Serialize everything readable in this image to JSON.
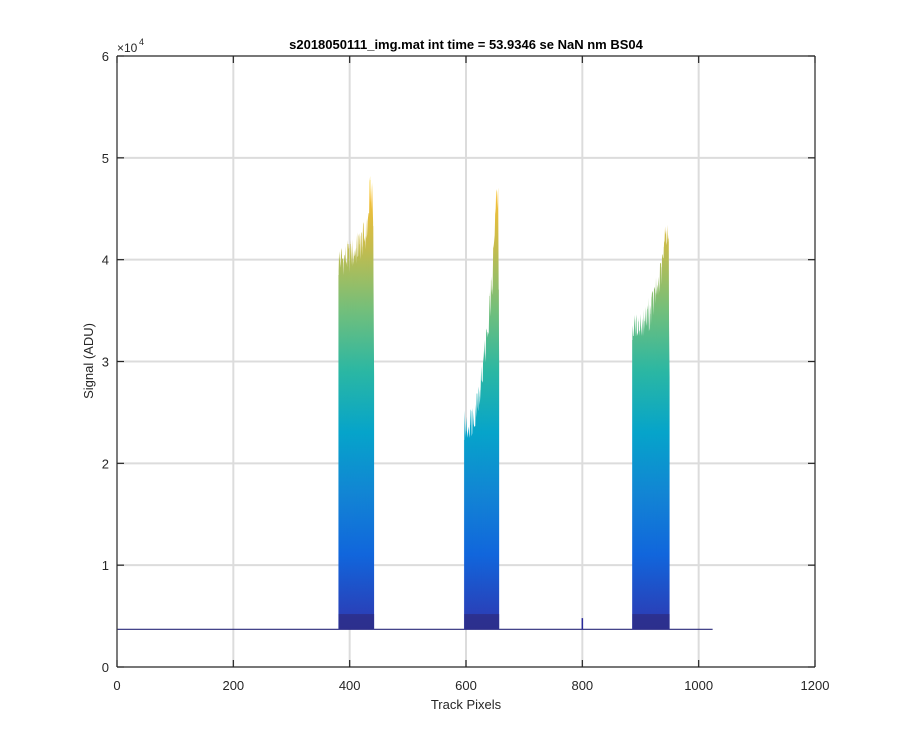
{
  "chart_data": {
    "type": "area",
    "title": "s2018050111_img.mat int time = 53.9346 se  NaN nm BS04",
    "xlabel": "Track Pixels",
    "ylabel": "Signal (ADU)",
    "xlim": [
      0,
      1200
    ],
    "ylim": [
      0,
      60000
    ],
    "y_exponent_label": "×10",
    "y_exponent_power": "4",
    "x_ticks": [
      0,
      200,
      400,
      600,
      800,
      1000,
      1200
    ],
    "x_tick_labels": [
      "0",
      "200",
      "400",
      "600",
      "800",
      "1000",
      "1200"
    ],
    "y_ticks": [
      0,
      10000,
      20000,
      30000,
      40000,
      50000,
      60000
    ],
    "y_tick_labels": [
      "0",
      "1",
      "2",
      "3",
      "4",
      "5",
      "6"
    ],
    "grid": true,
    "colormap": "parula",
    "baseline": 3700,
    "x_end": 1024,
    "peaks": [
      {
        "x_start": 381,
        "x_end": 442,
        "edge_start": 40000,
        "edge_end": 44500,
        "max": 47800,
        "inner_min": 38500
      },
      {
        "x_start": 597,
        "x_end": 657,
        "edge_start": 23500,
        "edge_end": 47000,
        "max": 49800,
        "inner_min": 22500
      },
      {
        "x_start": 886,
        "x_end": 950,
        "edge_start": 33000,
        "edge_end": 43000,
        "max": 44800,
        "inner_min": 32500
      }
    ],
    "blips": [
      {
        "x": 800,
        "value": 4800
      }
    ]
  }
}
